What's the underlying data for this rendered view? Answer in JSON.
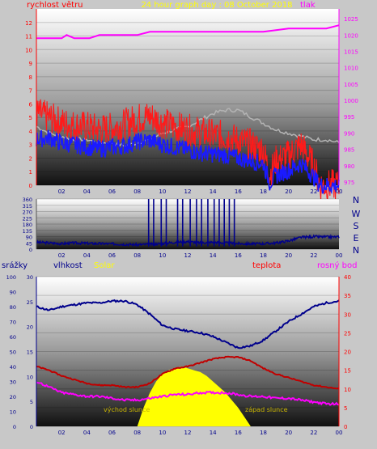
{
  "header": {
    "wind_label": "rychlost větru",
    "title": "24 hour graph day : 08 October 2018",
    "pressure_label": "tlak"
  },
  "panel2": {
    "direction_labels": [
      "N",
      "W",
      "S",
      "E",
      "N"
    ]
  },
  "panel3": {
    "rain_label": "srážky",
    "humidity_label": "vlhkost",
    "solar_label": "Solar",
    "temp_label": "teplota",
    "dew_label": "rosný bod",
    "sunrise_label": "východ slunce",
    "sunset_label": "západ slunce"
  },
  "colors": {
    "wind_gust": "#ff1a1a",
    "wind_avg": "#1a1aff",
    "pressure": "#ff00ff",
    "temp_small": "#b4b4b4",
    "humidity": "#00008c",
    "temperature": "#c00000",
    "dew_point": "#ff00ff",
    "solar": "#ffff00",
    "title_yellow": "#ffff00",
    "tick_red": "#ff0000",
    "tick_pink": "#ff00ff",
    "tick_blue": "#00008c"
  },
  "chart_data": [
    {
      "type": "line",
      "id": "wind-pressure",
      "title": "24 hour graph day : 08 October 2018",
      "x_ticks": [
        "02",
        "04",
        "06",
        "08",
        "10",
        "12",
        "14",
        "16",
        "18",
        "20",
        "22",
        "00"
      ],
      "x_range": [
        0,
        24
      ],
      "y_left_label": "rychlost větru",
      "y_left_range": [
        0,
        13
      ],
      "y_left_ticks": [
        0,
        1,
        2,
        3,
        4,
        5,
        6,
        7,
        8,
        9,
        10,
        11,
        12
      ],
      "y_right_label": "tlak",
      "y_right_range": [
        974,
        1028
      ],
      "y_right_ticks": [
        975,
        980,
        985,
        990,
        995,
        1000,
        1005,
        1010,
        1015,
        1020,
        1025
      ],
      "series": [
        {
          "name": "tlak",
          "axis": "right",
          "x": [
            0,
            2,
            2.4,
            3,
            4.2,
            5,
            6,
            8,
            9,
            9.8,
            10.5,
            11.2,
            12,
            13,
            14,
            16,
            17,
            18,
            20,
            22,
            23,
            24
          ],
          "y": [
            1019,
            1019,
            1020,
            1019,
            1019,
            1020,
            1020,
            1020,
            1021,
            1021,
            1021,
            1021,
            1021,
            1021,
            1021,
            1021,
            1021,
            1021,
            1022,
            1022,
            1022,
            1023
          ]
        },
        {
          "axis": "right",
          "x": [
            0,
            1,
            2,
            3,
            4,
            5,
            6,
            7,
            8,
            9,
            10,
            11,
            12,
            13,
            14,
            15,
            16,
            17,
            18,
            19,
            20,
            21,
            22,
            23,
            24
          ],
          "y": [
            992,
            990,
            989,
            988,
            988,
            987,
            987,
            986,
            987,
            988,
            990,
            991,
            992,
            994,
            996,
            997,
            997,
            995,
            993,
            991,
            990,
            989,
            988,
            988,
            987
          ]
        },
        {
          "axis": "left",
          "x": [
            0,
            1,
            2,
            3,
            4,
            5,
            6,
            7,
            8,
            9,
            10,
            11,
            12,
            13,
            14,
            15,
            16,
            17,
            18,
            18.5,
            19,
            20,
            21,
            22,
            22.5,
            24
          ],
          "y": [
            5.3,
            5.0,
            4.6,
            4.4,
            4.3,
            4.1,
            4.2,
            4.5,
            4.9,
            5.1,
            4.6,
            4.3,
            4.1,
            3.9,
            3.7,
            3.6,
            3.3,
            3.0,
            2.6,
            0.8,
            1.8,
            2.2,
            3.0,
            1.4,
            0,
            0
          ]
        },
        {
          "axis": "left",
          "x": [
            0,
            1,
            2,
            3,
            4,
            5,
            6,
            7,
            8,
            9,
            10,
            11,
            12,
            13,
            14,
            15,
            16,
            17,
            18,
            18.5,
            19,
            20,
            21,
            22,
            22.5,
            24
          ],
          "y": [
            3.4,
            3.5,
            3.1,
            3.0,
            2.8,
            2.7,
            2.8,
            2.9,
            3.2,
            3.3,
            3.0,
            2.8,
            2.6,
            2.4,
            2.3,
            2.2,
            2.0,
            1.8,
            1.6,
            0.2,
            0.7,
            1.1,
            1.6,
            0.6,
            0,
            0
          ]
        }
      ]
    },
    {
      "type": "line",
      "id": "wind-direction",
      "x_ticks": [
        "02",
        "04",
        "06",
        "08",
        "10",
        "12",
        "14",
        "16",
        "18",
        "20",
        "22",
        "00"
      ],
      "x_range": [
        0,
        24
      ],
      "y_range": [
        0,
        360
      ],
      "y_ticks": [
        0,
        45,
        90,
        135,
        180,
        225,
        270,
        315,
        360
      ],
      "y_right_labels": [
        "N",
        "W",
        "S",
        "E",
        "N"
      ],
      "series": [
        {
          "x": [
            0,
            1,
            2,
            3,
            4,
            5,
            6,
            7,
            8,
            9,
            10,
            11,
            12,
            13,
            14,
            15,
            16,
            17,
            18,
            19,
            20,
            21,
            22,
            23,
            24
          ],
          "y": [
            50,
            45,
            40,
            45,
            42,
            40,
            38,
            35,
            32,
            35,
            40,
            50,
            55,
            45,
            50,
            45,
            40,
            38,
            40,
            45,
            60,
            85,
            90,
            88,
            88
          ]
        }
      ],
      "spikes_x": [
        8.9,
        9.3,
        9.9,
        10.3,
        11.2,
        11.6,
        12.2,
        12.7,
        13.1,
        13.6,
        14.1,
        14.5,
        14.9,
        15.3,
        15.7
      ]
    },
    {
      "type": "line",
      "id": "rain-humidity-temp",
      "x_ticks": [
        "02",
        "04",
        "06",
        "08",
        "10",
        "12",
        "14",
        "16",
        "18",
        "20",
        "22",
        "00"
      ],
      "x_range": [
        0,
        24
      ],
      "rain_range": [
        0,
        100
      ],
      "rain_ticks": [
        0,
        10,
        20,
        30,
        40,
        50,
        60,
        70,
        80,
        90,
        100
      ],
      "humidity_range": [
        0,
        30
      ],
      "humidity_ticks": [
        0,
        5,
        10,
        15,
        20,
        25,
        30
      ],
      "temp_range": [
        0,
        40
      ],
      "temp_ticks": [
        0,
        5,
        10,
        15,
        20,
        25,
        30,
        35,
        40
      ],
      "series": [
        {
          "name": "vlhkost",
          "axis": "right",
          "x": [
            0,
            1,
            2,
            3,
            4,
            5,
            6,
            7,
            8,
            9,
            10,
            11,
            12,
            13,
            14,
            15,
            16,
            17,
            18,
            19,
            20,
            21,
            22,
            23,
            24
          ],
          "y": [
            32,
            31,
            32,
            32.5,
            33,
            33,
            33.5,
            33.5,
            32.5,
            30,
            27,
            26,
            25.5,
            25,
            24,
            22.5,
            21,
            21.5,
            23,
            25.5,
            28,
            30,
            32,
            33,
            33.5
          ]
        },
        {
          "name": "teplota",
          "axis": "right",
          "x": [
            0,
            1,
            2,
            3,
            4,
            5,
            6,
            7,
            8,
            9,
            10,
            11,
            12,
            13,
            14,
            15,
            16,
            17,
            18,
            19,
            20,
            21,
            22,
            23,
            24
          ],
          "y": [
            16,
            15,
            13.5,
            12.5,
            11.5,
            11,
            11,
            10.5,
            10.5,
            11.5,
            14,
            15.5,
            16,
            17,
            18,
            18.5,
            18.5,
            17.5,
            15.5,
            14,
            13,
            12,
            11,
            10.5,
            10
          ]
        },
        {
          "name": "rosný bod",
          "axis": "right",
          "x": [
            0,
            1,
            2,
            3,
            4,
            5,
            6,
            7,
            8,
            9,
            10,
            11,
            12,
            13,
            14,
            15,
            16,
            17,
            18,
            19,
            20,
            21,
            22,
            23,
            24
          ],
          "y": [
            12,
            10.5,
            9,
            8.5,
            8,
            8,
            7.5,
            7,
            7,
            7.5,
            8,
            8.5,
            8.5,
            9,
            9,
            9,
            8.5,
            8,
            8,
            7.5,
            7.5,
            7,
            6.5,
            6,
            6
          ]
        },
        {
          "name": "Solar",
          "axis": "right",
          "x": [
            8,
            8.5,
            9,
            9.5,
            10,
            10.5,
            11,
            11.5,
            12,
            12.5,
            13,
            13.5,
            14,
            14.5,
            15,
            15.5,
            16,
            16.5,
            17
          ],
          "y": [
            0,
            5,
            9,
            12,
            14,
            15,
            15.5,
            16,
            15.5,
            15,
            14.5,
            13.5,
            12,
            10.5,
            9,
            7,
            5,
            2.5,
            0
          ]
        }
      ]
    }
  ]
}
